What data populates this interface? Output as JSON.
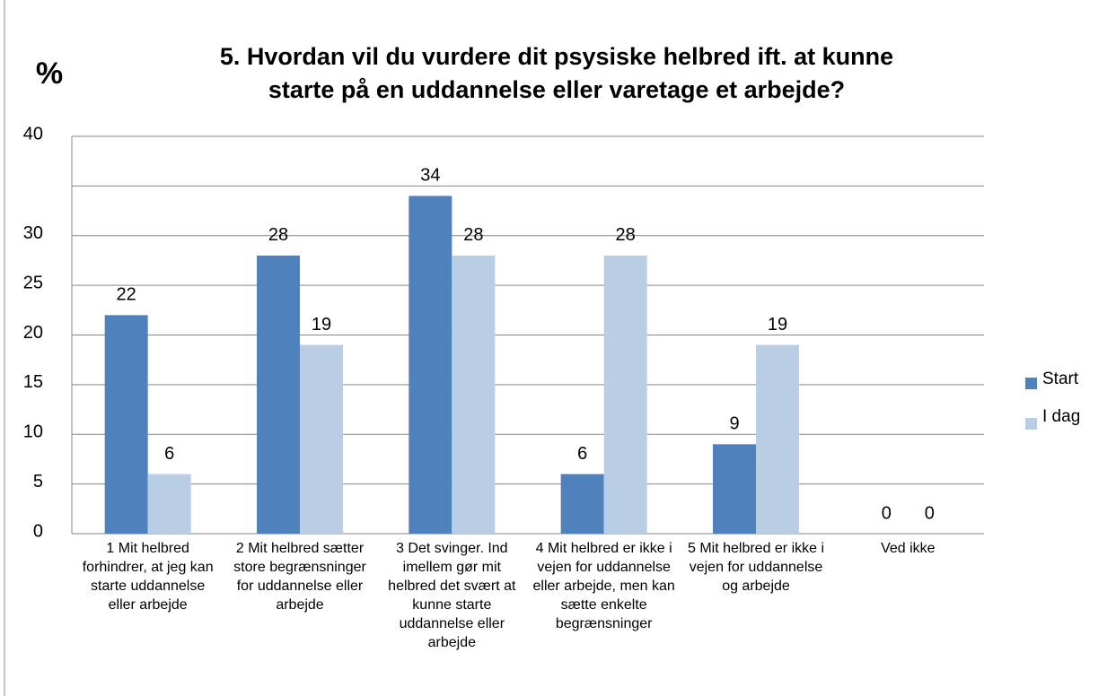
{
  "chart_data": {
    "type": "bar",
    "y_label": "%",
    "title": "5. Hvordan vil du vurdere dit psysiske helbred ift. at kunne starte på en uddannelse eller varetage et arbejde?",
    "title_lines": [
      "5. Hvordan vil du vurdere dit psysiske helbred ift. at kunne",
      "starte på en uddannelse eller varetage et arbejde?"
    ],
    "categories": [
      "1 Mit helbred forhindrer, at jeg kan starte uddannelse eller arbejde",
      "2 Mit helbred sætter store begrænsninger for uddannelse eller arbejde",
      "3 Det svinger. Ind imellem gør mit helbred det svært at kunne starte uddannelse eller arbejde",
      "4 Mit helbred er ikke i vejen for uddannelse eller arbejde, men kan sætte enkelte begrænsninger",
      "5 Mit helbred er ikke i vejen for uddannelse og arbejde",
      "Ved ikke"
    ],
    "series": [
      {
        "name": "Start",
        "color": "#4f81bd",
        "values": [
          22,
          28,
          34,
          6,
          9,
          0
        ]
      },
      {
        "name": "I dag",
        "color": "#b9cde5",
        "values": [
          6,
          19,
          28,
          28,
          19,
          0
        ]
      }
    ],
    "ylim": [
      0,
      40
    ],
    "yticks": [
      0,
      5,
      10,
      15,
      20,
      25,
      30,
      {
        "value": 35,
        "label": null
      },
      40
    ],
    "grid": true,
    "legend": "right"
  }
}
